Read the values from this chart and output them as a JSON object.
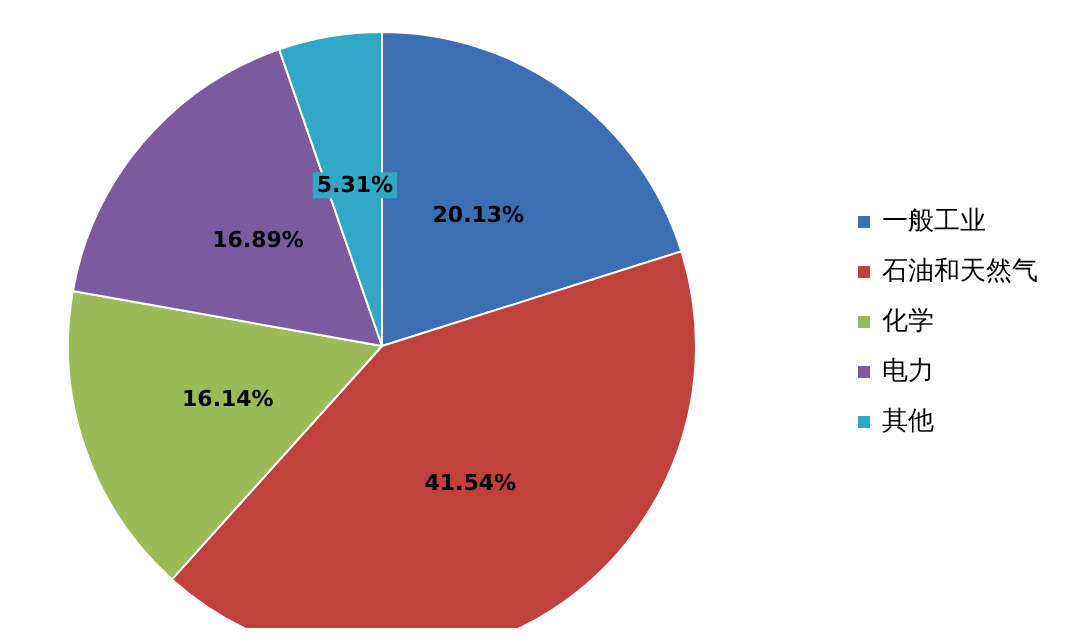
{
  "chart_data": {
    "type": "pie",
    "categories": [
      "一般工业",
      "石油和天然气",
      "化学",
      "电力",
      "其他"
    ],
    "values": [
      20.13,
      41.54,
      16.14,
      16.89,
      5.31
    ],
    "colors": [
      "#3c6eb4",
      "#c0403c",
      "#9bbb59",
      "#7b5aa0",
      "#32a7c6"
    ],
    "value_labels": [
      "20.13%",
      "41.54%",
      "16.14%",
      "16.89%",
      "5.31%"
    ],
    "legend": "right"
  }
}
